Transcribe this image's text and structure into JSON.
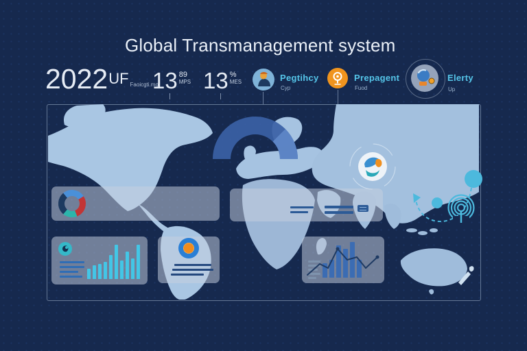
{
  "title": "Global Transmanagement system",
  "stats": [
    {
      "value": "2022",
      "unit": "UF",
      "note": "Faoicgti.mo"
    },
    {
      "value": "13",
      "sup": "89",
      "sub": "MPS"
    },
    {
      "value": "13",
      "sup": "%",
      "sub": "MES"
    }
  ],
  "legend": [
    {
      "label": "Pegtihcy",
      "sub": "Cyp",
      "icon": "person-icon",
      "color": "#7fb3d8"
    },
    {
      "label": "Prepagent",
      "sub": "Fuod",
      "icon": "location-pin-icon",
      "color": "#f0941e"
    },
    {
      "label": "Elerty",
      "sub": "Up",
      "icon": "magnifier-globe-icon",
      "color": "#95a3ba"
    }
  ],
  "colors": {
    "background": "#16294e",
    "map": "#a6c3e1",
    "accent_cyan": "#55c5e9",
    "accent_orange": "#f0941e",
    "gauge_blue": "#3b61a5",
    "gauge_blue_light": "#5e86c6",
    "card": "rgba(197,207,222,0.52)"
  },
  "chart_data": [
    {
      "type": "pie",
      "donut": true,
      "start_angle_deg": -130,
      "segments": [
        {
          "value": 27,
          "color": "#4a90d9"
        },
        {
          "value": 28,
          "color": "#c23535"
        },
        {
          "value": 17,
          "color": "#2cb5ab"
        },
        {
          "value": 28,
          "color": "#1d3a60"
        }
      ]
    },
    {
      "type": "bar",
      "values": [
        3,
        4,
        4.5,
        5,
        7,
        10,
        5.5,
        8,
        6,
        10
      ],
      "color": "#43c6e6"
    },
    {
      "type": "bar-line",
      "values": [
        4,
        5,
        9,
        8,
        10,
        5
      ],
      "color": "#3b6cb3",
      "line_color": "#1e3a63",
      "line_points": [
        [
          8,
          56
        ],
        [
          26,
          40
        ],
        [
          38,
          46
        ],
        [
          52,
          18
        ],
        [
          66,
          34
        ],
        [
          80,
          30
        ],
        [
          93,
          46
        ],
        [
          110,
          30
        ]
      ],
      "line_dots": [
        [
          52,
          18
        ],
        [
          110,
          30
        ]
      ]
    },
    {
      "type": "gauge",
      "shape": "half-donut arc over Europe",
      "colors": [
        "#3b61a5",
        "#5e86c6"
      ]
    }
  ]
}
